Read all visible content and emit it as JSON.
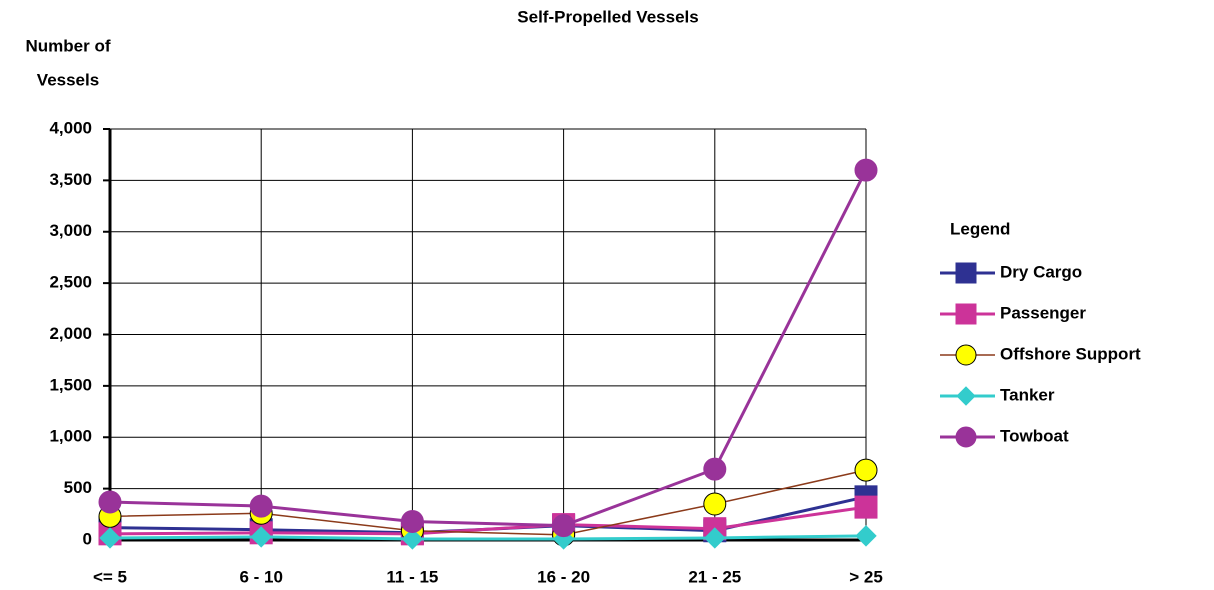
{
  "chart_data": {
    "type": "line",
    "title": "Self-Propelled Vessels",
    "y_label": [
      "Number of",
      "Vessels"
    ],
    "legend_title": "Legend",
    "legend": "right",
    "grid": true,
    "categories": [
      "<= 5",
      "6 - 10",
      "11 - 15",
      "16 - 20",
      "21 - 25",
      "> 25"
    ],
    "ylim": [
      0,
      4000
    ],
    "yticks": [
      0,
      500,
      {
        "value": 1000,
        "label": "1,000"
      },
      {
        "value": 1500,
        "label": "1,500"
      },
      {
        "value": 2000,
        "label": "2,000"
      },
      {
        "value": 2500,
        "label": "2,500"
      },
      {
        "value": 3000,
        "label": "3,000"
      },
      {
        "value": 3500,
        "label": "3,500"
      },
      {
        "value": 4000,
        "label": "4,000"
      }
    ],
    "series": [
      {
        "name": "Dry Cargo",
        "color": "#2e3192",
        "marker": "square",
        "marker_fill": "#2e3192",
        "values": [
          120,
          100,
          70,
          140,
          90,
          420
        ]
      },
      {
        "name": "Passenger",
        "color": "#cc3399",
        "marker": "square",
        "marker_fill": "#cc3399",
        "values": [
          60,
          70,
          60,
          150,
          110,
          320
        ]
      },
      {
        "name": "Offshore Support",
        "color": "#8b3a1a",
        "marker": "circle",
        "marker_fill": "#ffff00",
        "values": [
          230,
          260,
          90,
          50,
          350,
          680
        ]
      },
      {
        "name": "Tanker",
        "color": "#33cccc",
        "marker": "diamond",
        "marker_fill": "#33cccc",
        "values": [
          20,
          30,
          10,
          10,
          20,
          40
        ]
      },
      {
        "name": "Towboat",
        "color": "#993399",
        "marker": "circle",
        "marker_fill": "#993399",
        "values": [
          370,
          330,
          180,
          140,
          690,
          3600
        ]
      }
    ]
  }
}
